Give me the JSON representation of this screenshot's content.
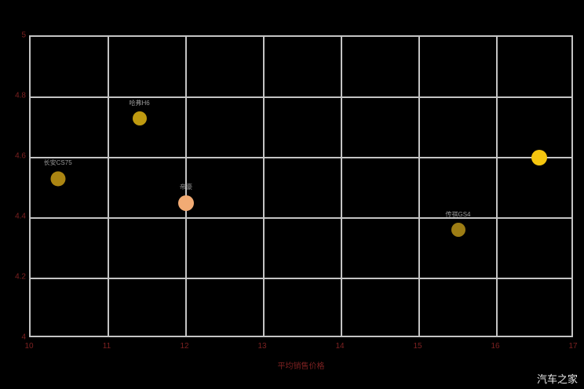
{
  "watermark": "汽车之家",
  "chart_data": {
    "type": "scatter",
    "title": "",
    "xlabel": "平均销售价格",
    "ylabel": "",
    "xlim": [
      10,
      17
    ],
    "ylim": [
      4,
      5
    ],
    "x_ticks": [
      "10",
      "11",
      "12",
      "13",
      "14",
      "15",
      "16",
      "17"
    ],
    "y_ticks": [
      "5",
      "4.8",
      "4.6",
      "4.4",
      "4.2",
      "4"
    ],
    "grid": true,
    "legend": "none",
    "axis_text_color": "#7c2121",
    "grid_color": "#c4c4c4",
    "background_color": "#000000",
    "points": [
      {
        "x": 10.35,
        "y": 4.53,
        "label": "长安CS75",
        "color": "#ab8512",
        "size": 19
      },
      {
        "x": 11.4,
        "y": 4.73,
        "label": "哈弗H6",
        "color": "#bf9a10",
        "size": 18
      },
      {
        "x": 12.0,
        "y": 4.45,
        "label": "帝豪",
        "color": "#f2ab74",
        "size": 20
      },
      {
        "x": 15.5,
        "y": 4.36,
        "label": "传祺GS4",
        "color": "#9d7d14",
        "size": 18
      },
      {
        "x": 16.55,
        "y": 4.6,
        "label": "",
        "color": "#f5c60f",
        "size": 20
      }
    ]
  }
}
